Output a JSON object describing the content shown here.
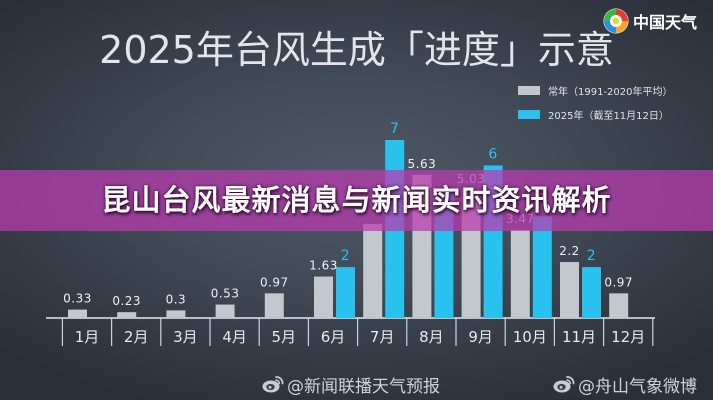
{
  "logo": {
    "icon": "china-weather-logo-icon",
    "text": "中国天气"
  },
  "banner": {
    "text": "昆山台风最新消息与新闻实时资讯解析",
    "color": "#b83cae"
  },
  "watermarks": [
    {
      "icon": "weibo-icon",
      "text": "@新闻联播天气预报"
    },
    {
      "icon": "weibo-icon",
      "text": "@舟山气象微博"
    }
  ],
  "chart_data": {
    "type": "bar",
    "title": "2025年台风生成「进度」示意",
    "categories": [
      "1月",
      "2月",
      "3月",
      "4月",
      "5月",
      "6月",
      "7月",
      "8月",
      "9月",
      "10月",
      "11月",
      "12月"
    ],
    "series": [
      {
        "name": "常年（1991-2020年平均）",
        "color": "#c3c7ce",
        "values": [
          0.33,
          0.23,
          0.3,
          0.53,
          0.97,
          1.63,
          3.7,
          5.63,
          5.03,
          3.47,
          2.2,
          0.97
        ],
        "data_labels": [
          "0.33",
          "0.23",
          "0.3",
          "0.53",
          "0.97",
          "1.63",
          "",
          "5.63",
          "5.03",
          "3.47",
          "2.2",
          "0.97"
        ]
      },
      {
        "name": "2025年（截至11月12日）",
        "color": "#29c2ee",
        "values": [
          null,
          null,
          null,
          null,
          null,
          2,
          7,
          5,
          6,
          4,
          2,
          null
        ],
        "data_labels": [
          "",
          "",
          "",
          "",
          "",
          "2",
          "7",
          "",
          "6",
          "",
          "2",
          ""
        ]
      }
    ],
    "ylim": [
      0,
      7
    ],
    "grid": false,
    "legend": "top-right"
  }
}
